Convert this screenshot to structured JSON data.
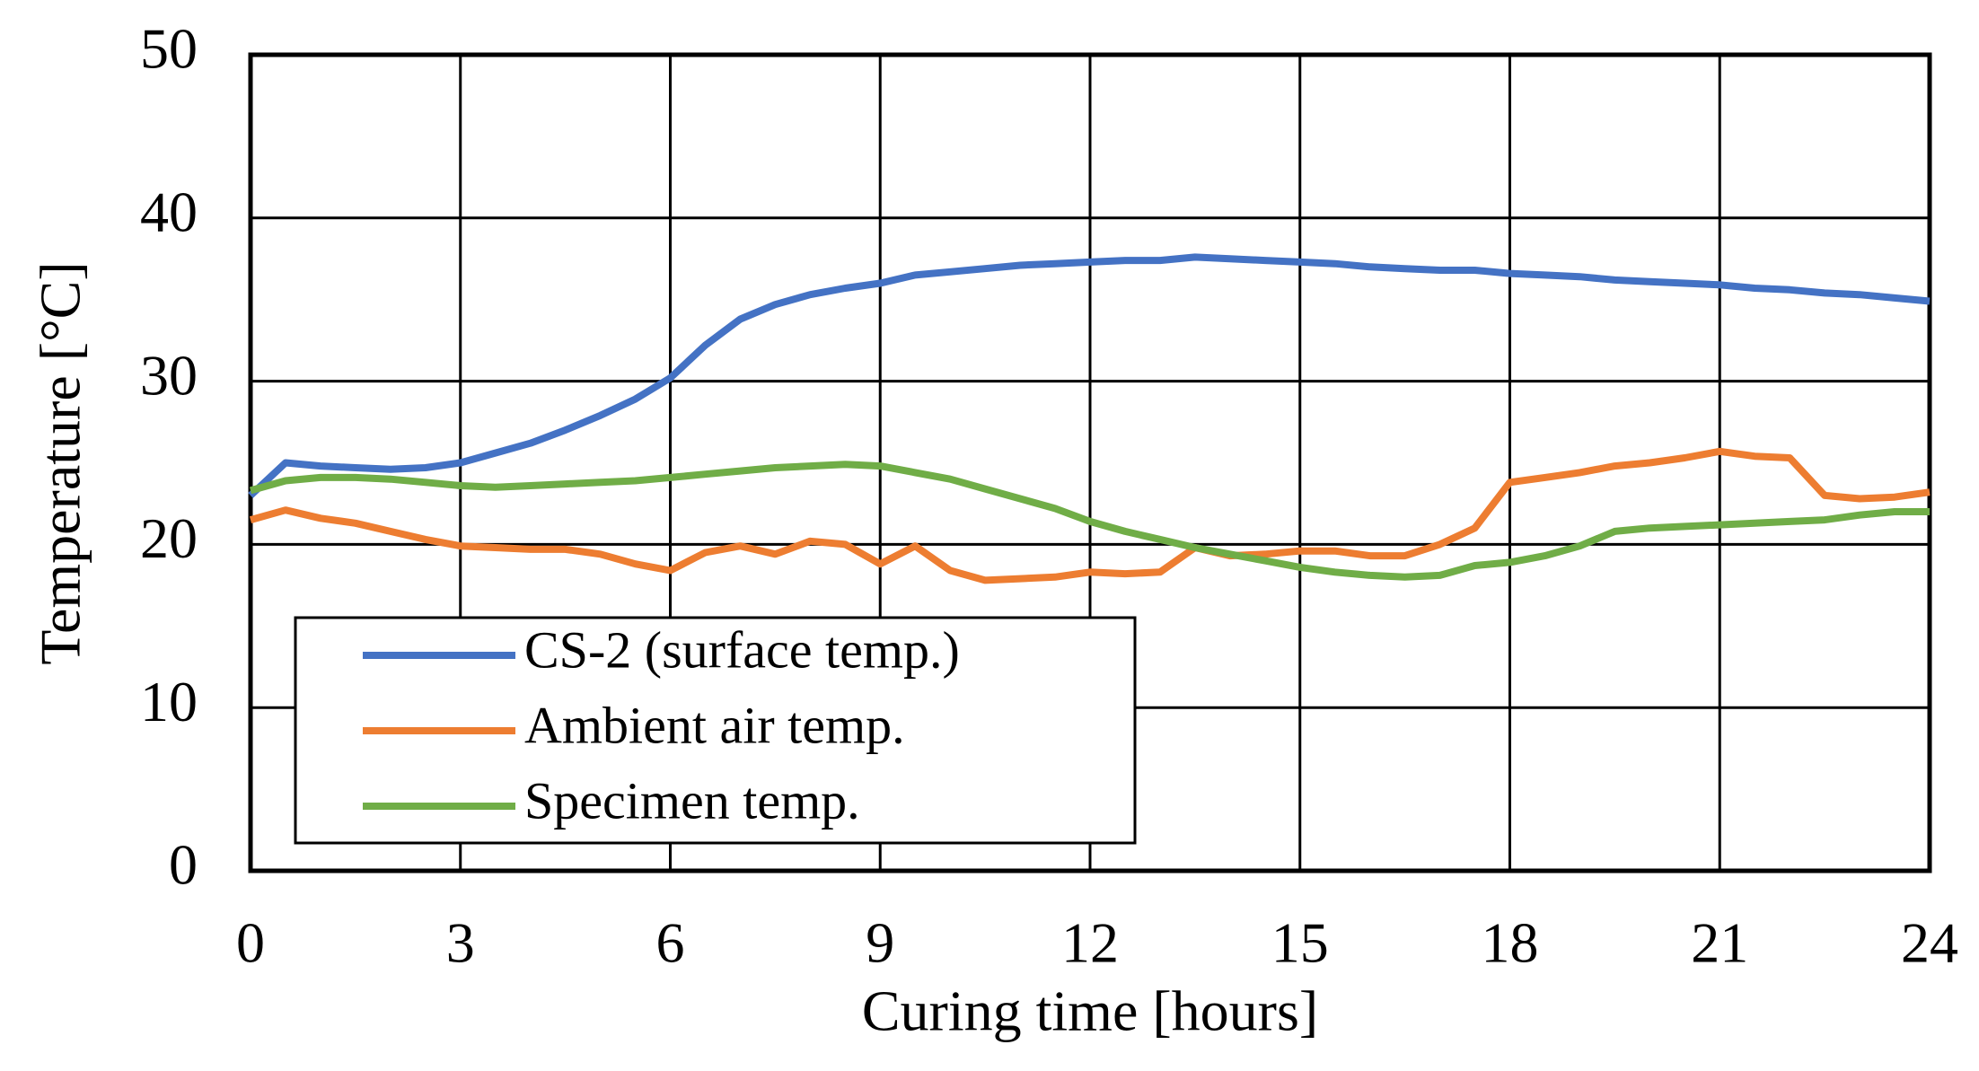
{
  "chart_data": {
    "type": "line",
    "x_label": "Curing time [hours]",
    "y_label": "Temperature [°C]",
    "x": [
      0,
      0.5,
      1,
      1.5,
      2,
      2.5,
      3,
      3.5,
      4,
      4.5,
      5,
      5.5,
      6,
      6.5,
      7,
      7.5,
      8,
      8.5,
      9,
      9.5,
      10,
      10.5,
      11,
      11.5,
      12,
      12.5,
      13,
      13.5,
      14,
      14.5,
      15,
      15.5,
      16,
      16.5,
      17,
      17.5,
      18,
      18.5,
      19,
      19.5,
      20,
      20.5,
      21,
      21.5,
      22,
      22.5,
      23,
      23.5,
      24
    ],
    "series": [
      {
        "name": "CS-2 (surface temp.)",
        "color": "#4472c4",
        "values": [
          23,
          25,
          24.8,
          24.7,
          24.6,
          24.7,
          25,
          25.6,
          26.2,
          27,
          27.9,
          28.9,
          30.2,
          32.2,
          33.8,
          34.7,
          35.3,
          35.7,
          36,
          36.5,
          36.7,
          36.9,
          37.1,
          37.2,
          37.3,
          37.4,
          37.4,
          37.6,
          37.5,
          37.4,
          37.3,
          37.2,
          37,
          36.9,
          36.8,
          36.8,
          36.6,
          36.5,
          36.4,
          36.2,
          36.1,
          36,
          35.9,
          35.7,
          35.6,
          35.4,
          35.3,
          35.1,
          34.9
        ]
      },
      {
        "name": "Ambient air temp.",
        "color": "#ed7d31",
        "values": [
          21.5,
          22.1,
          21.6,
          21.3,
          20.8,
          20.3,
          19.9,
          19.8,
          19.7,
          19.7,
          19.4,
          18.8,
          18.4,
          19.5,
          19.9,
          19.4,
          20.2,
          20,
          18.8,
          19.9,
          18.4,
          17.8,
          17.9,
          18,
          18.3,
          18.2,
          18.3,
          19.8,
          19.3,
          19.4,
          19.6,
          19.6,
          19.3,
          19.3,
          20,
          21,
          23.8,
          24.1,
          24.4,
          24.8,
          25,
          25.3,
          25.7,
          25.4,
          25.3,
          23,
          22.8,
          22.9,
          23.2
        ]
      },
      {
        "name": "Specimen temp.",
        "color": "#70ad47",
        "values": [
          23.3,
          23.9,
          24.1,
          24.1,
          24,
          23.8,
          23.6,
          23.5,
          23.6,
          23.7,
          23.8,
          23.9,
          24.1,
          24.3,
          24.5,
          24.7,
          24.8,
          24.9,
          24.8,
          24.4,
          24,
          23.4,
          22.8,
          22.2,
          21.4,
          20.8,
          20.3,
          19.8,
          19.4,
          19,
          18.6,
          18.3,
          18.1,
          18,
          18.1,
          18.7,
          18.9,
          19.3,
          19.9,
          20.8,
          21,
          21.1,
          21.2,
          21.3,
          21.4,
          21.5,
          21.8,
          22,
          22
        ]
      }
    ],
    "xlim": [
      0,
      24
    ],
    "xticks": [
      0,
      3,
      6,
      9,
      12,
      15,
      18,
      21,
      24
    ],
    "ylim": [
      0,
      50
    ],
    "yticks": [
      0,
      10,
      20,
      30,
      40,
      50
    ],
    "grid": true,
    "legend": "lower left"
  }
}
